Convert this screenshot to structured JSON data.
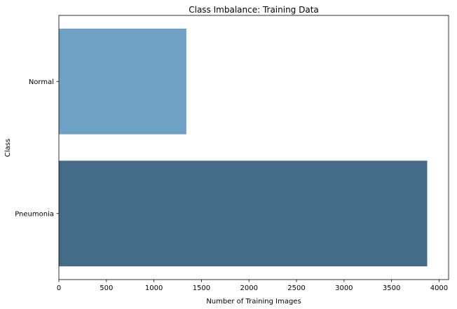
{
  "chart_data": {
    "type": "bar",
    "orientation": "horizontal",
    "title": "Class Imbalance: Training Data",
    "xlabel": "Number of Training Images",
    "ylabel": "Class",
    "categories": [
      "Normal",
      "Pneumonia"
    ],
    "values": [
      1341,
      3875
    ],
    "xlim": [
      0,
      4100
    ],
    "xticks": [
      0,
      500,
      1000,
      1500,
      2000,
      2500,
      3000,
      3500,
      4000
    ],
    "grid": false,
    "colors": [
      "#6fa1c4",
      "#436a86"
    ]
  }
}
